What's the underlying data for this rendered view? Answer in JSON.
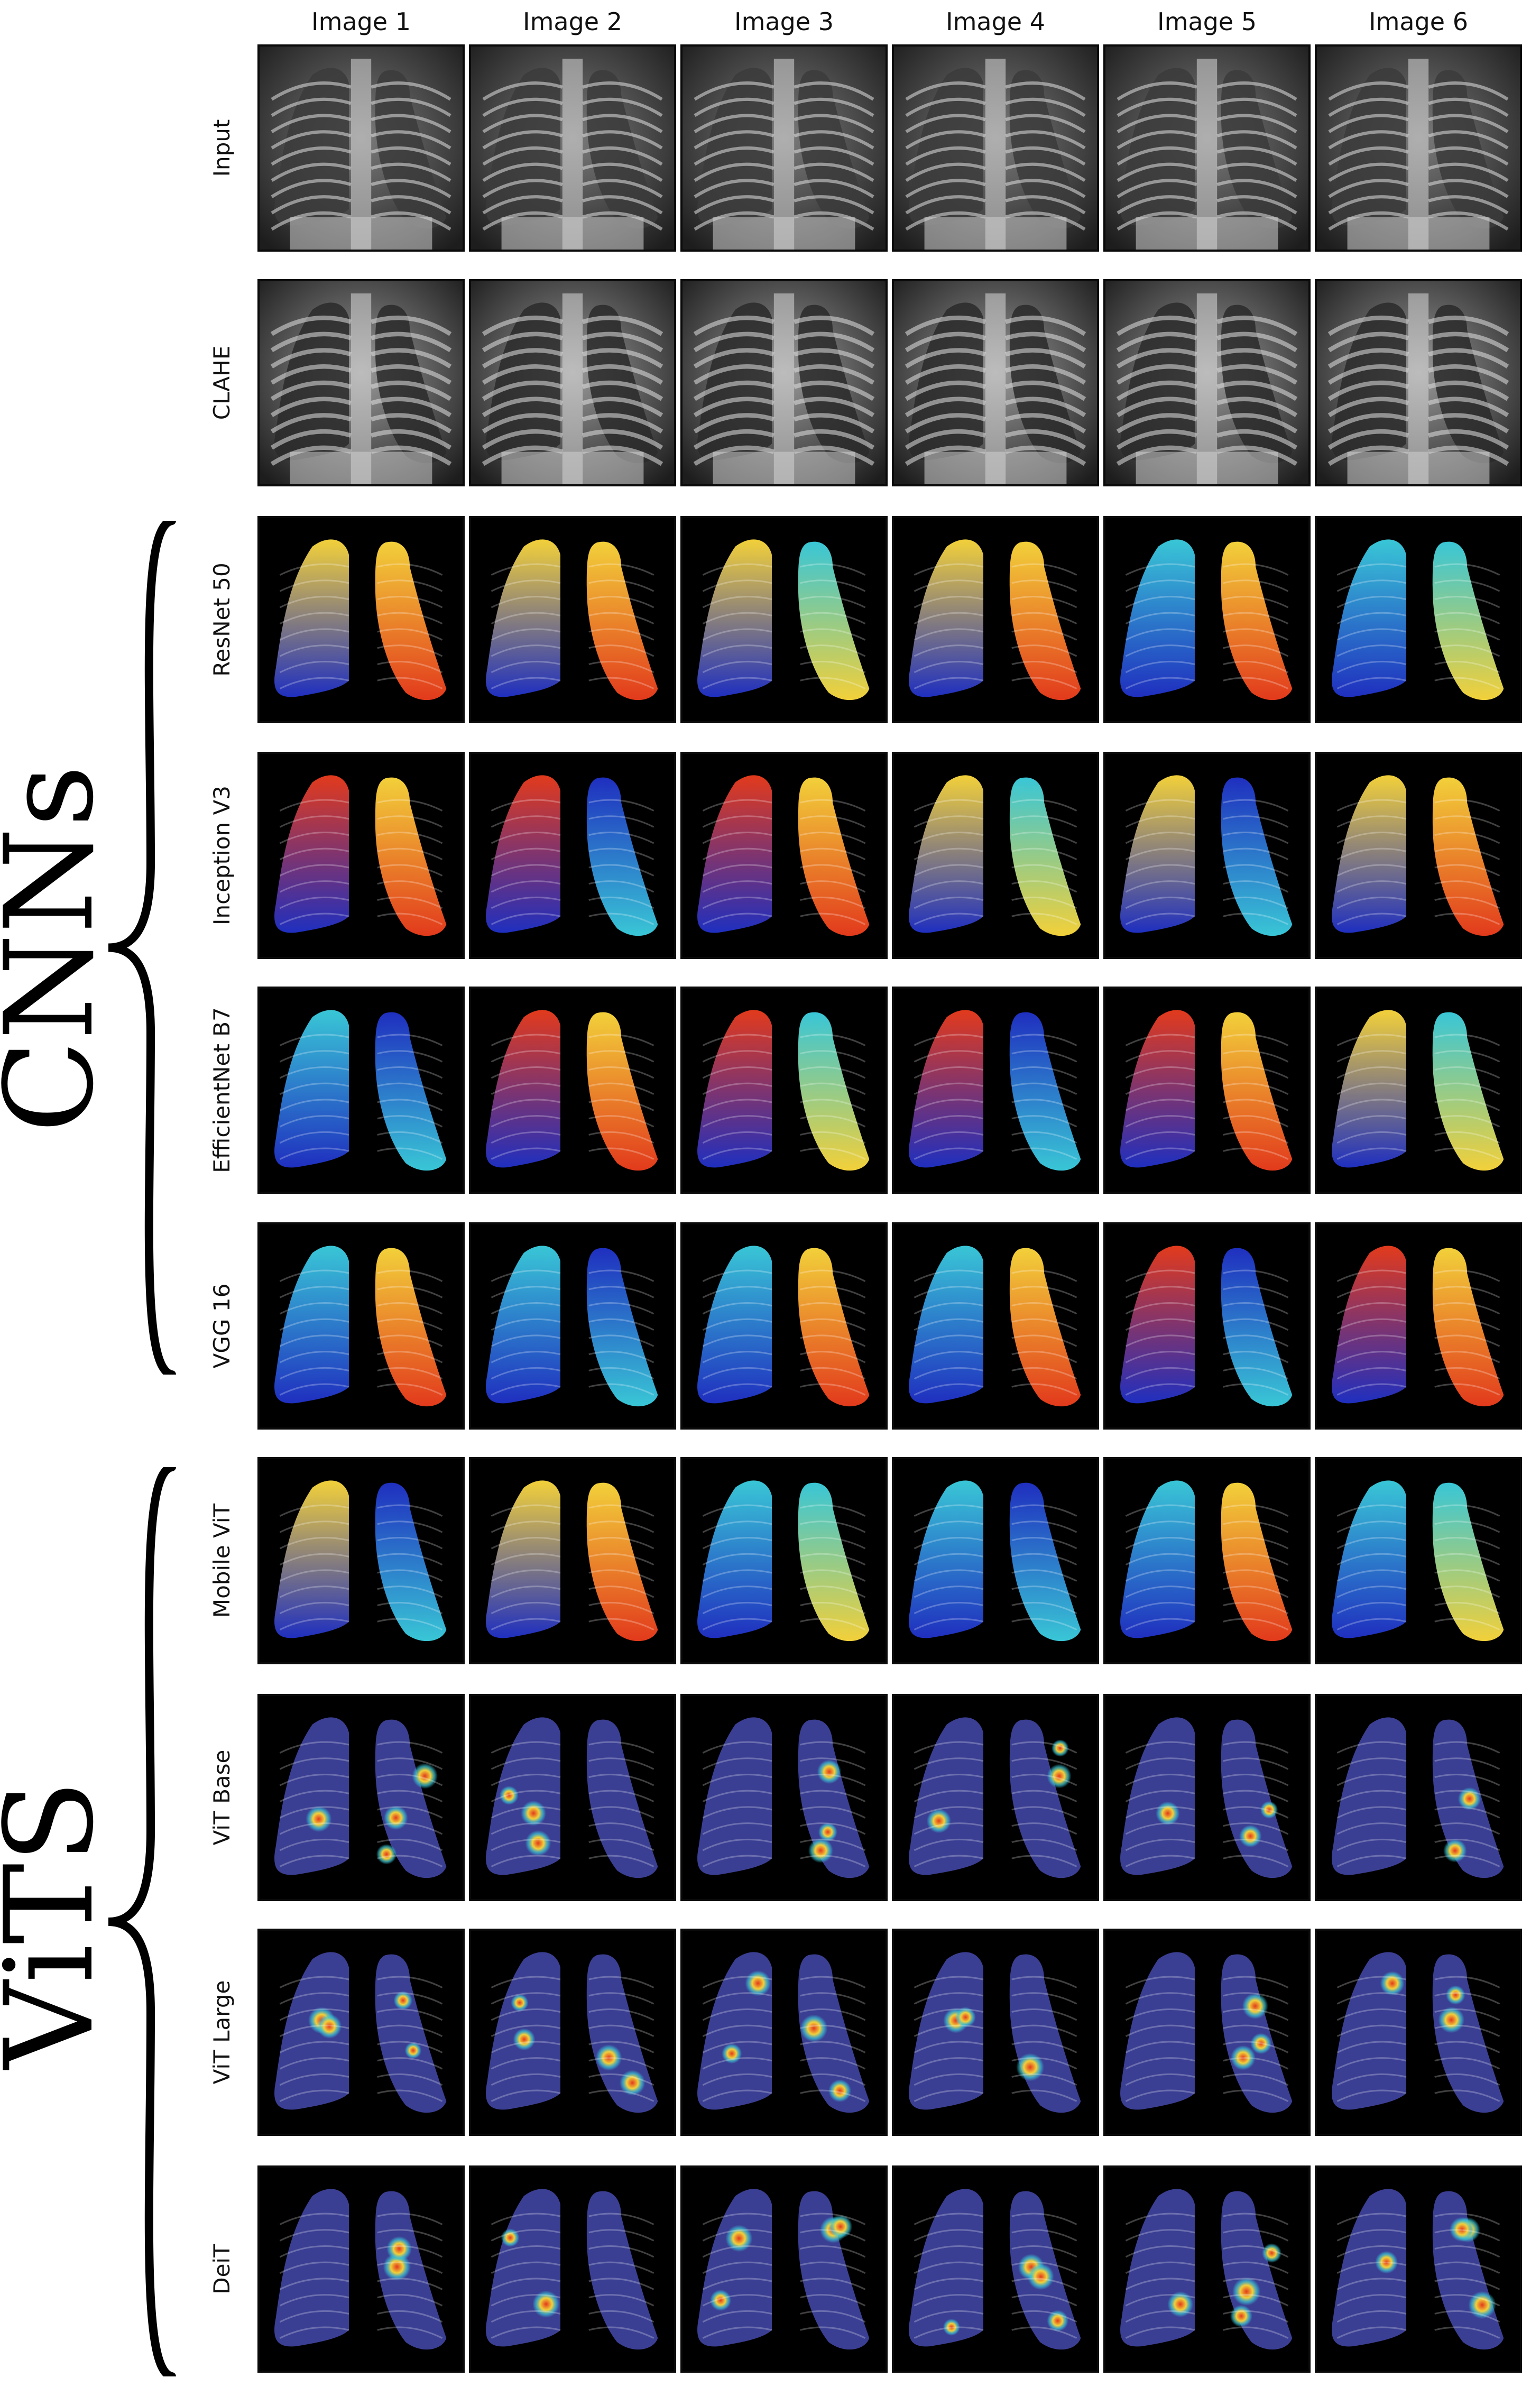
{
  "columns": [
    "Image 1",
    "Image 2",
    "Image 3",
    "Image 4",
    "Image 5",
    "Image 6"
  ],
  "rows": [
    {
      "label": "Input",
      "kind": "xray"
    },
    {
      "label": "CLAHE",
      "kind": "clahe"
    },
    {
      "label": "ResNet 50",
      "kind": "broad"
    },
    {
      "label": "Inception V3",
      "kind": "broad"
    },
    {
      "label": "EfficientNet B7",
      "kind": "broad"
    },
    {
      "label": "VGG 16",
      "kind": "broad"
    },
    {
      "label": "Mobile ViT",
      "kind": "broad"
    },
    {
      "label": "ViT Base",
      "kind": "spots"
    },
    {
      "label": "ViT Large",
      "kind": "spots"
    },
    {
      "label": "DeiT",
      "kind": "spots"
    }
  ],
  "groups": [
    {
      "label": "CNNs"
    },
    {
      "label": "ViTS"
    }
  ],
  "colors": {
    "background": "#ffffff",
    "tile_background": "#000000",
    "heat_low": "#1f2fbf",
    "heat_mid": "#39c6d6",
    "heat_high": "#e23a1c"
  }
}
